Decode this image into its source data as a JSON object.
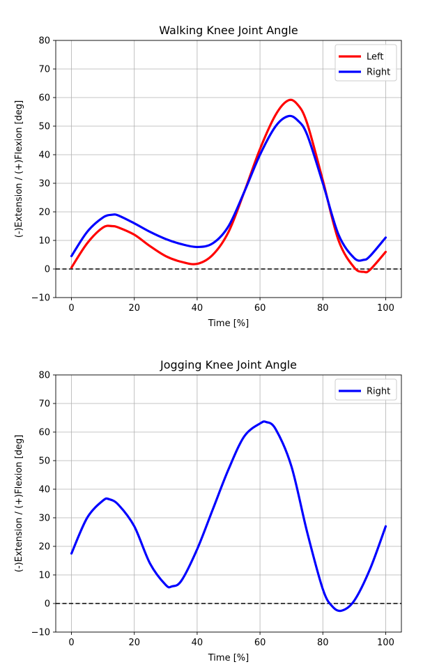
{
  "chart_data": [
    {
      "type": "line",
      "title": "Walking Knee Joint Angle",
      "xlabel": "Time [%]",
      "ylabel": "(-)Extension / (+)Flexion [deg]",
      "xlim": [
        -5,
        105
      ],
      "ylim": [
        -10,
        80
      ],
      "xticks": [
        0,
        20,
        40,
        60,
        80,
        100
      ],
      "yticks": [
        -10,
        0,
        10,
        20,
        30,
        40,
        50,
        60,
        70,
        80
      ],
      "grid": true,
      "legend": "top-right",
      "reference_line": {
        "y": 0,
        "style": "dashed",
        "color": "#000000"
      },
      "x": [
        0,
        5,
        10,
        13,
        15,
        20,
        25,
        30,
        35,
        40,
        45,
        50,
        55,
        60,
        65,
        69,
        72,
        75,
        80,
        85,
        90,
        93,
        95,
        100
      ],
      "series": [
        {
          "name": "Left",
          "color": "#ff0000",
          "values": [
            0.5,
            9,
            14.5,
            15,
            14.5,
            12,
            8,
            4.5,
            2.5,
            1.8,
            5,
            13,
            27,
            42,
            54,
            59,
            57.5,
            51,
            31,
            10,
            0.5,
            -1,
            -0.3,
            6
          ]
        },
        {
          "name": "Right",
          "color": "#0000ff",
          "values": [
            4.5,
            13,
            18,
            19,
            18.7,
            16,
            13,
            10.5,
            8.7,
            7.7,
            9,
            15,
            27,
            40,
            50,
            53.5,
            52,
            47,
            30,
            12,
            3.8,
            3.2,
            4.5,
            11
          ]
        }
      ]
    },
    {
      "type": "line",
      "title": "Jogging Knee Joint Angle",
      "xlabel": "Time [%]",
      "ylabel": "(-)Extension / (+)Flexion [deg]",
      "xlim": [
        -5,
        105
      ],
      "ylim": [
        -10,
        80
      ],
      "xticks": [
        0,
        20,
        40,
        60,
        80,
        100
      ],
      "yticks": [
        -10,
        0,
        10,
        20,
        30,
        40,
        50,
        60,
        70,
        80
      ],
      "grid": true,
      "legend": "top-right",
      "reference_line": {
        "y": 0,
        "style": "dashed",
        "color": "#000000"
      },
      "x": [
        0,
        5,
        10,
        12,
        15,
        20,
        25,
        30,
        32,
        35,
        40,
        45,
        50,
        55,
        60,
        62,
        65,
        70,
        75,
        80,
        83,
        86,
        90,
        95,
        100
      ],
      "series": [
        {
          "name": "Right",
          "color": "#0000ff",
          "values": [
            17.5,
            30,
            36,
            36.5,
            34.5,
            27,
            14,
            6.5,
            6,
            8,
            19,
            33,
            47,
            58.5,
            63,
            63.5,
            61,
            48,
            25,
            5,
            -1,
            -2.5,
            1,
            12,
            27
          ]
        }
      ]
    }
  ]
}
